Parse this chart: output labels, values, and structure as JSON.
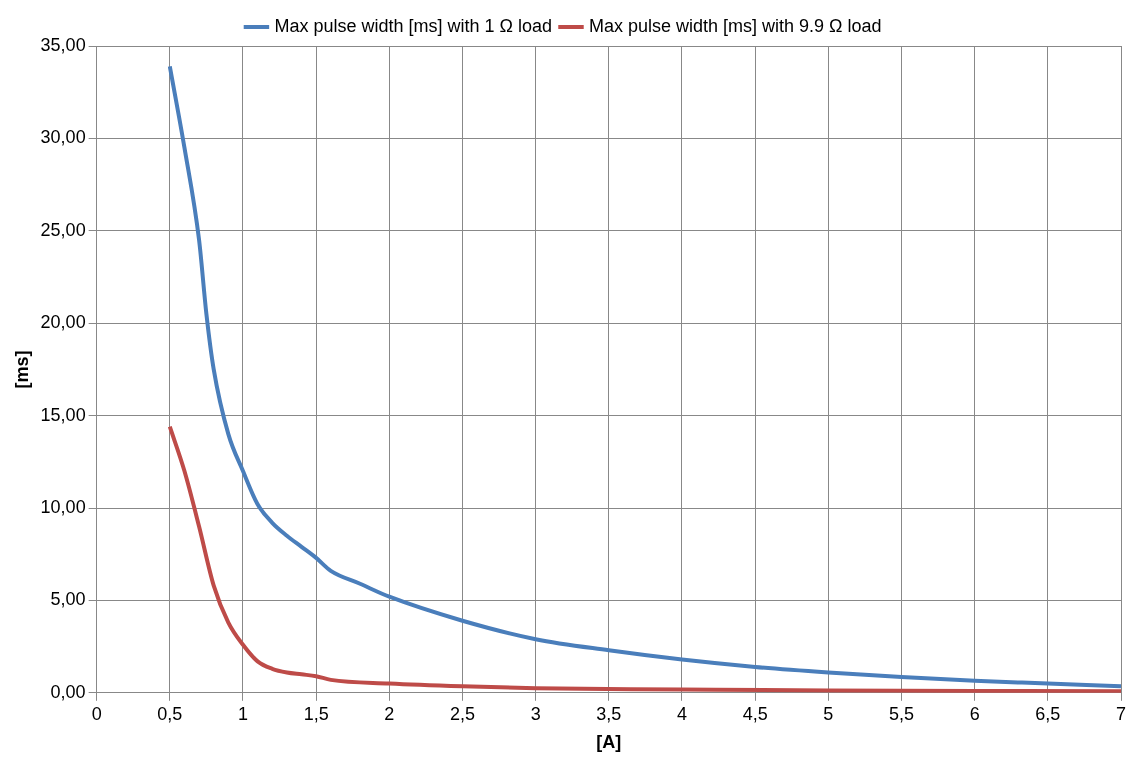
{
  "chart_data": {
    "type": "line",
    "xlabel": "[A]",
    "ylabel": "[ms]",
    "xlim": [
      0,
      7
    ],
    "ylim": [
      0,
      35
    ],
    "xticks": [
      0,
      {
        "value": 0.5,
        "label": "0,5"
      },
      1,
      {
        "value": 1.5,
        "label": "1,5"
      },
      2,
      {
        "value": 2.5,
        "label": "2,5"
      },
      3,
      {
        "value": 3.5,
        "label": "3,5"
      },
      4,
      {
        "value": 4.5,
        "label": "4,5"
      },
      5,
      {
        "value": 5.5,
        "label": "5,5"
      },
      6,
      {
        "value": 6.5,
        "label": "6,5"
      },
      7
    ],
    "yticks": [
      {
        "value": 0,
        "label": "0,00"
      },
      {
        "value": 5,
        "label": "5,00"
      },
      {
        "value": 10,
        "label": "10,00"
      },
      {
        "value": 15,
        "label": "15,00"
      },
      {
        "value": 20,
        "label": "20,00"
      },
      {
        "value": 25,
        "label": "25,00"
      },
      {
        "value": 30,
        "label": "30,00"
      },
      {
        "value": 35,
        "label": "35,00"
      }
    ],
    "grid": true,
    "legend": "top",
    "marker": "none",
    "line_style": "solid",
    "series": [
      {
        "name": "Max pulse width [ms] with 1 Ω load",
        "color": "#4a7ebb",
        "x": [
          0.5,
          0.6,
          0.7,
          0.75,
          0.8,
          0.9,
          1,
          1.1,
          1.2,
          1.3,
          1.4,
          1.5,
          1.6,
          1.8,
          2,
          2.5,
          3,
          3.5,
          4,
          4.5,
          5,
          5.5,
          6,
          6.5,
          7
        ],
        "values": [
          33.9,
          29.5,
          24.5,
          20.5,
          17.5,
          14,
          12,
          10.2,
          9.2,
          8.5,
          7.9,
          7.3,
          6.6,
          5.9,
          5.2,
          3.9,
          2.9,
          2.3,
          1.8,
          1.4,
          1.1,
          0.85,
          0.65,
          0.5,
          0.35
        ]
      },
      {
        "name": "Max pulse width [ms] with 9.9 Ω load",
        "color": "#be4b48",
        "x": [
          0.5,
          0.6,
          0.7,
          0.8,
          0.9,
          1,
          1.1,
          1.2,
          1.3,
          1.4,
          1.5,
          1.6,
          2,
          2.5,
          3,
          4,
          5,
          6,
          7
        ],
        "values": [
          14.4,
          12,
          9,
          5.8,
          3.8,
          2.6,
          1.7,
          1.3,
          1.1,
          1,
          0.9,
          0.7,
          0.5,
          0.35,
          0.25,
          0.18,
          0.12,
          0.1,
          0.08
        ]
      }
    ]
  }
}
